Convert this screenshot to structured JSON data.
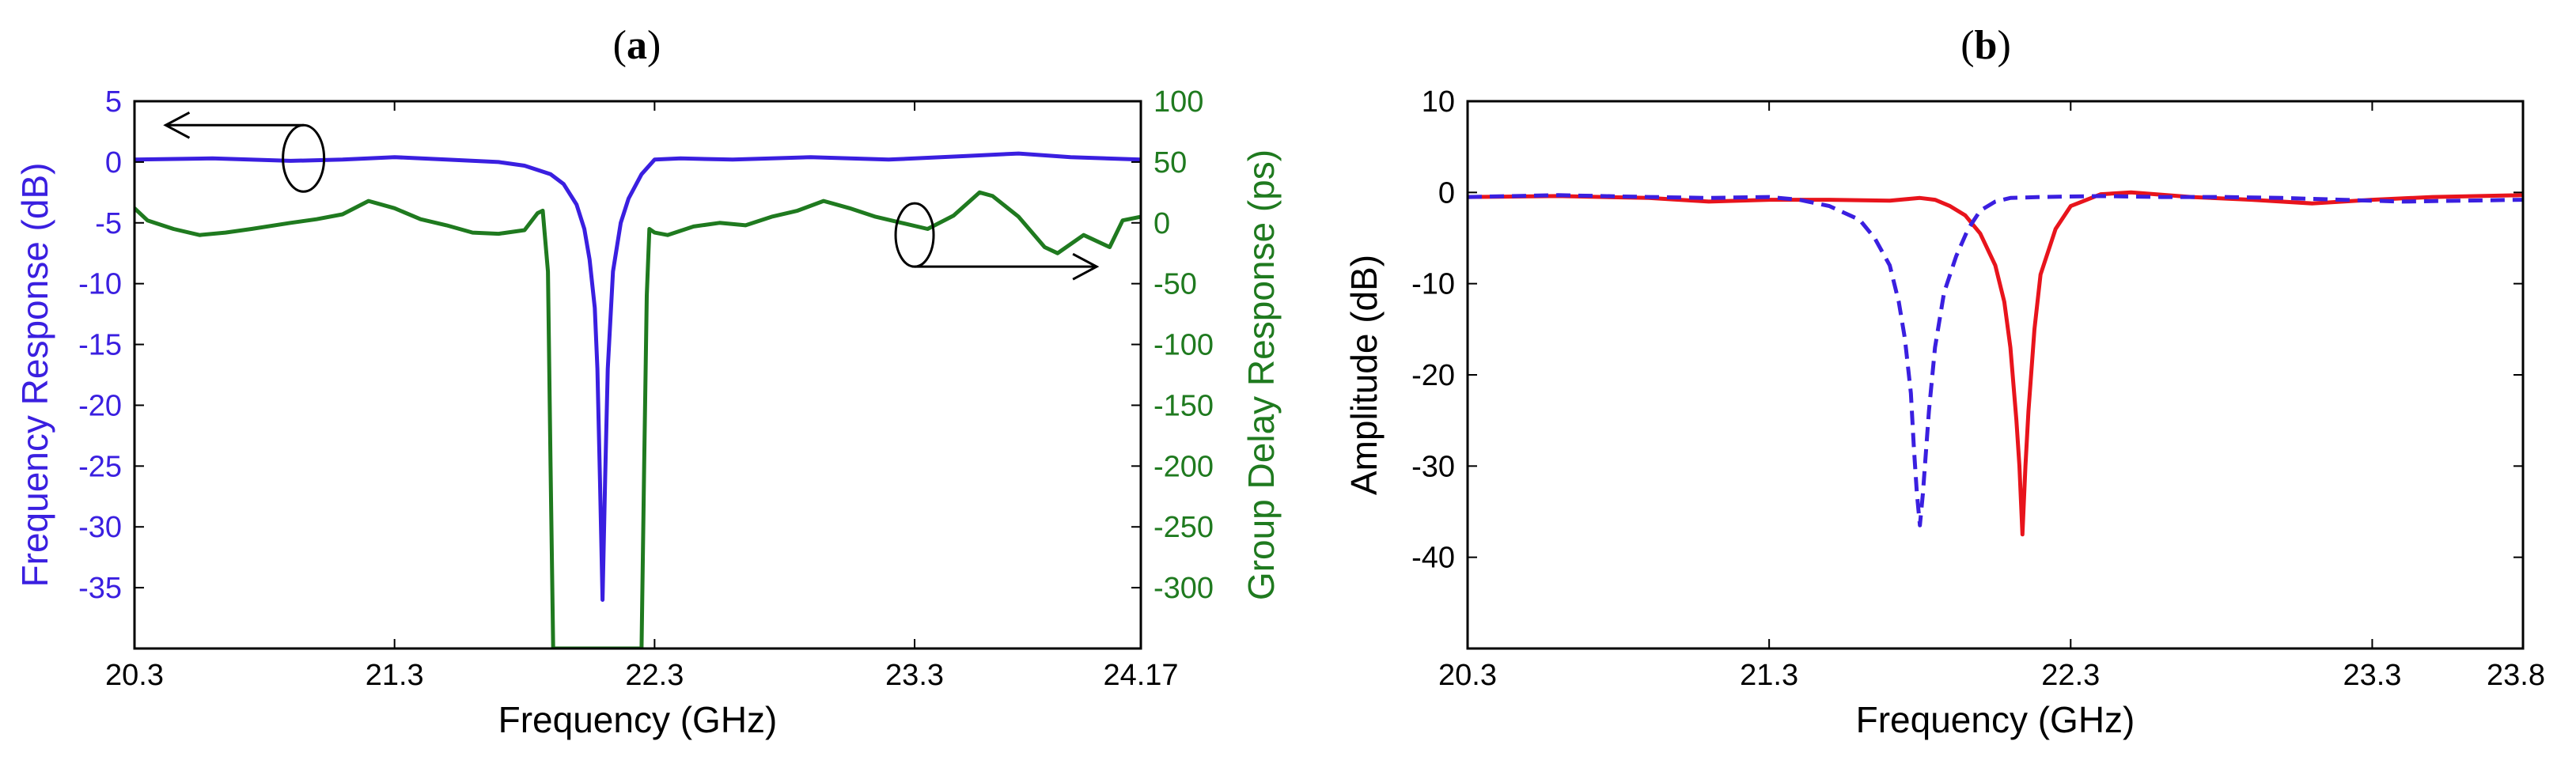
{
  "chart_data": [
    {
      "panel": "a",
      "type": "line",
      "title": "(a)",
      "title_letter": "a",
      "xlabel": "Frequency (GHz)",
      "ylabel_left": "Frequency Response (dB)",
      "ylabel_right": "Group Delay Response (ps)",
      "xlim": [
        20.3,
        24.17
      ],
      "ylim_left": [
        -40,
        5
      ],
      "ylim_right": [
        -350,
        100
      ],
      "xticks": [
        "20.3",
        "21.3",
        "22.3",
        "23.3",
        "24.17"
      ],
      "xtick_values": [
        20.3,
        21.3,
        22.3,
        23.3,
        24.17
      ],
      "yticks_left": [
        "5",
        "0",
        "-5",
        "-10",
        "-15",
        "-20",
        "-25",
        "-30",
        "-35"
      ],
      "yticks_left_values": [
        5,
        0,
        -5,
        -10,
        -15,
        -20,
        -25,
        -30,
        -35
      ],
      "yticks_right": [
        "100",
        "50",
        "0",
        "-50",
        "-100",
        "-150",
        "-200",
        "-250",
        "-300"
      ],
      "yticks_right_values": [
        100,
        50,
        0,
        -50,
        -100,
        -150,
        -200,
        -250,
        -300
      ],
      "colors": {
        "left_axis": "#3a1fe0",
        "right_axis": "#1f7a1f"
      },
      "series": [
        {
          "axis": "left",
          "color": "#3a1fe0",
          "dash": false,
          "x": [
            20.3,
            20.6,
            20.9,
            21.1,
            21.3,
            21.5,
            21.7,
            21.8,
            21.9,
            21.95,
            22.0,
            22.03,
            22.05,
            22.07,
            22.08,
            22.09,
            22.1,
            22.11,
            22.12,
            22.14,
            22.17,
            22.2,
            22.25,
            22.3,
            22.4,
            22.6,
            22.9,
            23.2,
            23.5,
            23.7,
            23.9,
            24.17
          ],
          "y": [
            0.2,
            0.3,
            0.1,
            0.2,
            0.4,
            0.2,
            0.0,
            -0.3,
            -1.0,
            -1.8,
            -3.5,
            -5.5,
            -8.0,
            -12.0,
            -17.0,
            -26.0,
            -36.0,
            -26.0,
            -17.0,
            -9.0,
            -5.0,
            -3.0,
            -1.0,
            0.2,
            0.3,
            0.2,
            0.4,
            0.2,
            0.5,
            0.7,
            0.4,
            0.2
          ]
        },
        {
          "axis": "right",
          "color": "#1f7a1f",
          "dash": false,
          "x": [
            20.3,
            20.35,
            20.45,
            20.55,
            20.65,
            20.75,
            20.9,
            21.0,
            21.1,
            21.2,
            21.3,
            21.4,
            21.5,
            21.6,
            21.7,
            21.8,
            21.85,
            21.87,
            21.89,
            21.9,
            21.91,
            21.95,
            22.2,
            22.25,
            22.26,
            22.27,
            22.28,
            22.3,
            22.35,
            22.45,
            22.55,
            22.65,
            22.75,
            22.85,
            22.95,
            23.05,
            23.15,
            23.25,
            23.35,
            23.45,
            23.55,
            23.6,
            23.7,
            23.8,
            23.85,
            23.95,
            24.05,
            24.1,
            24.17
          ],
          "y": [
            12,
            2,
            -5,
            -10,
            -8,
            -5,
            0,
            3,
            7,
            18,
            12,
            3,
            -2,
            -8,
            -9,
            -6,
            8,
            10,
            -40,
            -200,
            -350,
            -350,
            -350,
            -350,
            -200,
            -60,
            -5,
            -8,
            -10,
            -3,
            0,
            -2,
            5,
            10,
            18,
            12,
            5,
            0,
            -5,
            6,
            25,
            22,
            5,
            -20,
            -25,
            -10,
            -20,
            2,
            5
          ]
        }
      ],
      "annotations": [
        {
          "type": "ellipse-arrow",
          "points_to": "left-axis"
        },
        {
          "type": "ellipse-arrow",
          "points_to": "right-axis"
        }
      ],
      "grid": false
    },
    {
      "panel": "b",
      "type": "line",
      "title": "(b)",
      "title_letter": "b",
      "xlabel": "Frequency (GHz)",
      "ylabel": "Amplitude (dB)",
      "xlim": [
        20.3,
        23.8
      ],
      "ylim": [
        -50,
        10
      ],
      "xticks": [
        "20.3",
        "21.3",
        "22.3",
        "23.3",
        "23.8"
      ],
      "xtick_values": [
        20.3,
        21.3,
        22.3,
        23.3,
        23.8
      ],
      "yticks": [
        "10",
        "0",
        "-10",
        "-20",
        "-30",
        "-40"
      ],
      "ytick_values": [
        10,
        0,
        -10,
        -20,
        -30,
        -40
      ],
      "series": [
        {
          "color": "#e8141c",
          "dash": false,
          "x": [
            20.3,
            20.6,
            20.9,
            21.1,
            21.3,
            21.5,
            21.7,
            21.8,
            21.85,
            21.9,
            21.95,
            22.0,
            22.05,
            22.08,
            22.1,
            22.12,
            22.13,
            22.14,
            22.15,
            22.16,
            22.18,
            22.2,
            22.25,
            22.3,
            22.4,
            22.5,
            22.7,
            22.9,
            23.1,
            23.3,
            23.5,
            23.8
          ],
          "y": [
            -0.5,
            -0.4,
            -0.6,
            -1.0,
            -0.8,
            -0.8,
            -0.9,
            -0.6,
            -0.8,
            -1.5,
            -2.5,
            -4.5,
            -8.0,
            -12.0,
            -17.0,
            -25.0,
            -30.0,
            -37.5,
            -30.0,
            -24.0,
            -15.0,
            -9.0,
            -4.0,
            -1.5,
            -0.2,
            0.0,
            -0.5,
            -0.8,
            -1.2,
            -0.8,
            -0.5,
            -0.3
          ]
        },
        {
          "color": "#3a1fe0",
          "dash": true,
          "x": [
            20.3,
            20.6,
            20.9,
            21.1,
            21.3,
            21.4,
            21.5,
            21.6,
            21.65,
            21.7,
            21.73,
            21.75,
            21.77,
            21.78,
            21.79,
            21.8,
            21.81,
            21.83,
            21.85,
            21.88,
            21.92,
            21.96,
            22.0,
            22.05,
            22.1,
            22.2,
            22.4,
            22.6,
            22.8,
            23.0,
            23.2,
            23.4,
            23.6,
            23.8
          ],
          "y": [
            -0.5,
            -0.3,
            -0.5,
            -0.6,
            -0.5,
            -0.8,
            -1.5,
            -3.0,
            -5.0,
            -8.0,
            -12.0,
            -16.0,
            -22.0,
            -28.0,
            -33.0,
            -36.5,
            -33.0,
            -24.0,
            -17.0,
            -11.0,
            -7.0,
            -4.0,
            -2.0,
            -1.0,
            -0.6,
            -0.5,
            -0.4,
            -0.5,
            -0.5,
            -0.6,
            -0.8,
            -1.0,
            -0.9,
            -0.8
          ]
        }
      ],
      "grid": false
    }
  ]
}
